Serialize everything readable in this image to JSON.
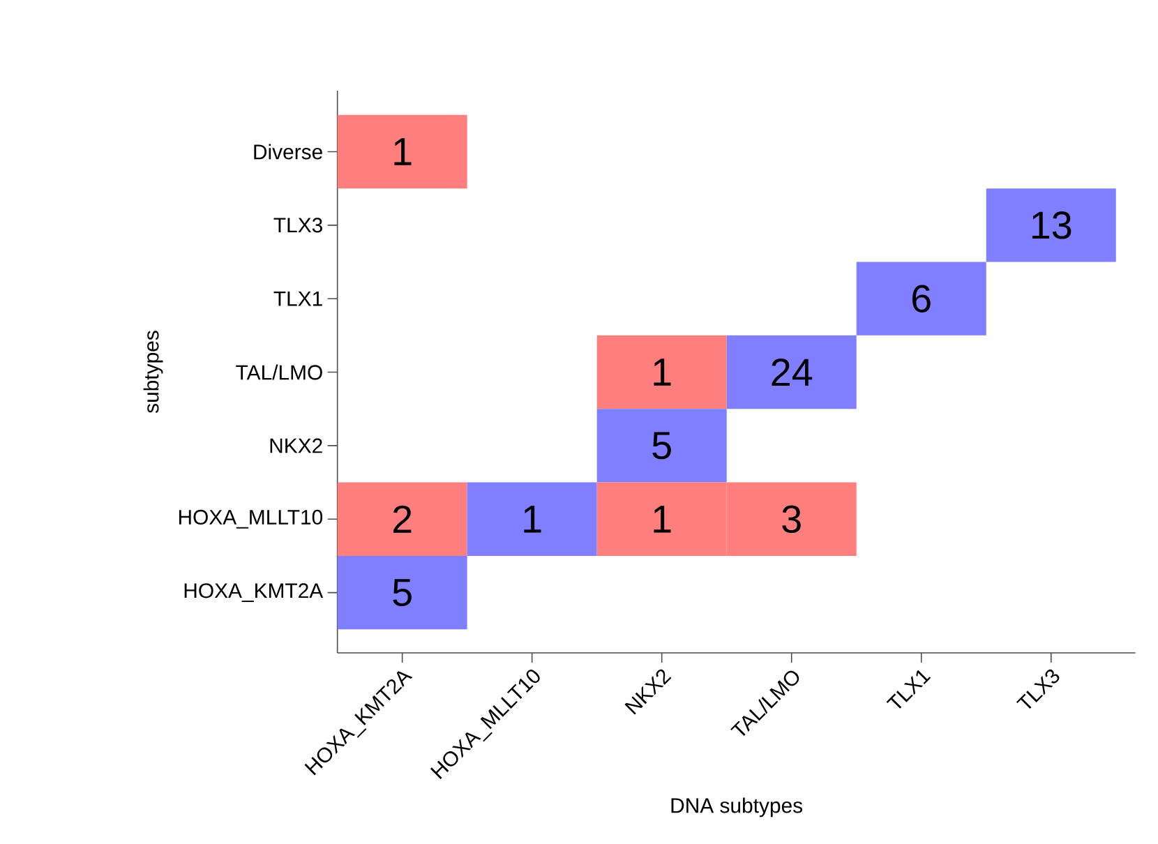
{
  "chart_data": {
    "type": "heatmap",
    "xlabel": "DNA subtypes",
    "ylabel": "subtypes",
    "categories": [
      "HOXA_KMT2A",
      "HOXA_MLLT10",
      "NKX2",
      "TAL/LMO",
      "TLX1",
      "TLX3"
    ],
    "y_categories": [
      "Diverse",
      "TLX3",
      "TLX1",
      "TAL/LMO",
      "NKX2",
      "HOXA_MLLT10",
      "HOXA_KMT2A"
    ],
    "cells": [
      [
        1,
        null,
        null,
        null,
        null,
        null
      ],
      [
        null,
        null,
        null,
        null,
        null,
        13
      ],
      [
        null,
        null,
        null,
        null,
        6,
        null
      ],
      [
        null,
        null,
        1,
        24,
        null,
        null
      ],
      [
        null,
        null,
        5,
        null,
        null,
        null
      ],
      [
        2,
        1,
        1,
        3,
        null,
        null
      ],
      [
        5,
        null,
        null,
        null,
        null,
        null
      ]
    ],
    "colors": [
      [
        "#ff7f7f",
        null,
        null,
        null,
        null,
        null
      ],
      [
        null,
        null,
        null,
        null,
        null,
        "#7f7fff"
      ],
      [
        null,
        null,
        null,
        null,
        "#7f7fff",
        null
      ],
      [
        null,
        null,
        "#ff7f7f",
        "#7f7fff",
        null,
        null
      ],
      [
        null,
        null,
        "#7f7fff",
        null,
        null,
        null
      ],
      [
        "#ff7f7f",
        "#7f7fff",
        "#ff7f7f",
        "#ff7f7f",
        null,
        null
      ],
      [
        "#7f7fff",
        null,
        null,
        null,
        null,
        null
      ]
    ],
    "data_labels": true
  }
}
